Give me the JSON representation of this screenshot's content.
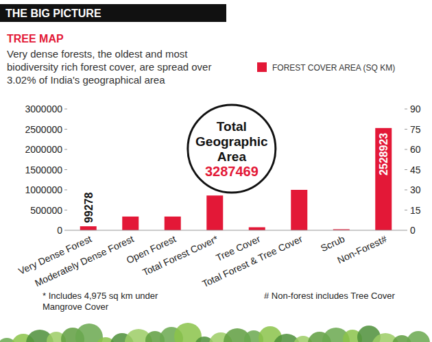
{
  "header": {
    "title": "THE BIG PICTURE"
  },
  "chart_data": {
    "type": "bar",
    "title": "TREE MAP",
    "subtitle": "Very dense forests, the oldest and most biodiversity rich forest cover, are spread over 3.02% of India's geographical area",
    "categories": [
      "Very Dense Forest",
      "Moderately Dense Forest",
      "Open Forest",
      "Total Forest Cover*",
      "Tree Cover",
      "Total Forest & Tree Cover",
      "Scrub",
      "Non-Forest#"
    ],
    "series": [
      {
        "name": "FOREST COVER AREA (SQ KM)",
        "color": "#e31837",
        "values": [
          99278,
          340000,
          340000,
          860000,
          75000,
          1000000,
          25000,
          2528923
        ],
        "value_labels": [
          "99278",
          null,
          null,
          null,
          null,
          null,
          null,
          "2528923"
        ]
      }
    ],
    "ylim": [
      0,
      3000000
    ],
    "yticks": [
      0,
      500000,
      1000000,
      1500000,
      2000000,
      2500000,
      3000000
    ],
    "y2lim": [
      0,
      90
    ],
    "y2ticks": [
      0,
      15,
      30,
      45,
      60,
      75,
      90
    ],
    "grid": false,
    "legend": "top-right",
    "annotations": [
      {
        "label": "Total Geographic Area",
        "value": 3287469
      }
    ],
    "notes": [
      "* Includes 4,975 sq km under Mangrove Cover",
      "# Non-forest includes Tree Cover"
    ]
  }
}
